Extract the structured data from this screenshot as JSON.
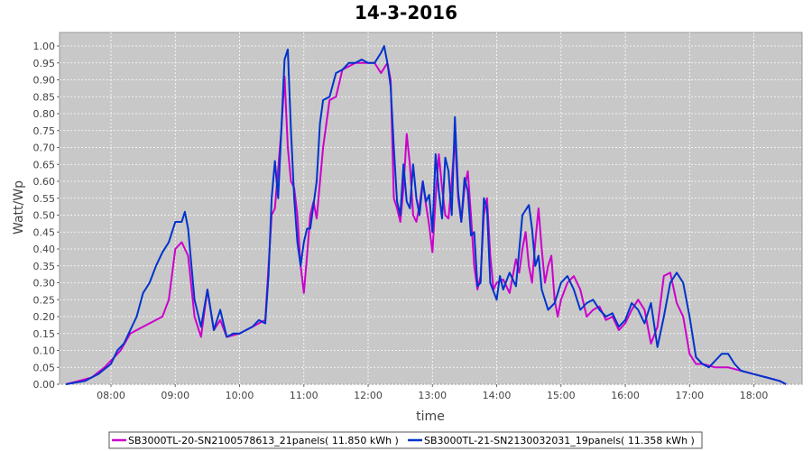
{
  "chart_data": {
    "type": "line",
    "title": "14-3-2016",
    "xlabel": "time",
    "ylabel": "Watt/Wp",
    "x_unit": "hours",
    "xlim": [
      7.2,
      18.75
    ],
    "ylim": [
      0.0,
      1.04
    ],
    "x_ticks": [
      {
        "value": 8,
        "label": "08:00"
      },
      {
        "value": 9,
        "label": "09:00"
      },
      {
        "value": 10,
        "label": "10:00"
      },
      {
        "value": 11,
        "label": "11:00"
      },
      {
        "value": 12,
        "label": "12:00"
      },
      {
        "value": 13,
        "label": "13:00"
      },
      {
        "value": 14,
        "label": "14:00"
      },
      {
        "value": 15,
        "label": "15:00"
      },
      {
        "value": 16,
        "label": "16:00"
      },
      {
        "value": 17,
        "label": "17:00"
      },
      {
        "value": 18,
        "label": "18:00"
      }
    ],
    "y_ticks": [
      "0.00",
      "0.05",
      "0.10",
      "0.15",
      "0.20",
      "0.25",
      "0.30",
      "0.35",
      "0.40",
      "0.45",
      "0.50",
      "0.55",
      "0.60",
      "0.65",
      "0.70",
      "0.75",
      "0.80",
      "0.85",
      "0.90",
      "0.95",
      "1.00"
    ],
    "grid": true,
    "legend_position": "bottom",
    "colors": {
      "plot_background": "#c8c8c8",
      "grid": "#ffffff",
      "series_1": "#cc00cc",
      "series_2": "#0033cc"
    },
    "series": [
      {
        "name": "SB3000TL-20-SN2100578613_21panels( 11.850 kWh )",
        "color": "#cc00cc",
        "x": [
          7.3,
          7.5,
          7.7,
          7.9,
          8.0,
          8.15,
          8.3,
          8.5,
          8.7,
          8.8,
          8.9,
          9.0,
          9.1,
          9.2,
          9.3,
          9.4,
          9.5,
          9.6,
          9.7,
          9.8,
          10.0,
          10.2,
          10.3,
          10.4,
          10.5,
          10.55,
          10.65,
          10.7,
          10.75,
          10.8,
          10.85,
          10.9,
          10.95,
          11.0,
          11.05,
          11.1,
          11.15,
          11.2,
          11.3,
          11.4,
          11.5,
          11.6,
          11.7,
          11.8,
          12.0,
          12.1,
          12.2,
          12.3,
          12.35,
          12.4,
          12.45,
          12.5,
          12.55,
          12.6,
          12.65,
          12.7,
          12.75,
          12.8,
          12.85,
          12.9,
          12.95,
          13.0,
          13.05,
          13.1,
          13.15,
          13.2,
          13.25,
          13.3,
          13.35,
          13.4,
          13.45,
          13.5,
          13.55,
          13.6,
          13.65,
          13.7,
          13.75,
          13.8,
          13.85,
          13.9,
          13.95,
          14.0,
          14.1,
          14.2,
          14.3,
          14.35,
          14.4,
          14.45,
          14.5,
          14.55,
          14.6,
          14.65,
          14.7,
          14.75,
          14.8,
          14.85,
          14.9,
          14.95,
          15.0,
          15.1,
          15.2,
          15.3,
          15.4,
          15.5,
          15.6,
          15.7,
          15.8,
          15.9,
          16.0,
          16.1,
          16.2,
          16.3,
          16.4,
          16.5,
          16.6,
          16.7,
          16.8,
          16.9,
          17.0,
          17.1,
          17.2,
          17.4,
          17.6,
          17.8,
          18.0,
          18.2,
          18.4,
          18.5
        ],
        "y": [
          0.0,
          0.01,
          0.02,
          0.05,
          0.07,
          0.1,
          0.15,
          0.17,
          0.19,
          0.2,
          0.25,
          0.4,
          0.42,
          0.38,
          0.2,
          0.14,
          0.28,
          0.16,
          0.19,
          0.14,
          0.15,
          0.17,
          0.18,
          0.19,
          0.5,
          0.52,
          0.75,
          0.91,
          0.7,
          0.6,
          0.58,
          0.5,
          0.35,
          0.27,
          0.38,
          0.5,
          0.54,
          0.49,
          0.7,
          0.84,
          0.85,
          0.93,
          0.94,
          0.95,
          0.95,
          0.95,
          0.92,
          0.95,
          0.9,
          0.55,
          0.52,
          0.48,
          0.58,
          0.74,
          0.65,
          0.5,
          0.48,
          0.53,
          0.6,
          0.53,
          0.47,
          0.39,
          0.55,
          0.68,
          0.58,
          0.5,
          0.49,
          0.6,
          0.73,
          0.55,
          0.48,
          0.58,
          0.63,
          0.5,
          0.35,
          0.28,
          0.32,
          0.5,
          0.55,
          0.38,
          0.28,
          0.3,
          0.31,
          0.27,
          0.37,
          0.33,
          0.4,
          0.45,
          0.35,
          0.3,
          0.42,
          0.52,
          0.4,
          0.3,
          0.35,
          0.38,
          0.25,
          0.2,
          0.25,
          0.3,
          0.32,
          0.28,
          0.2,
          0.22,
          0.23,
          0.19,
          0.2,
          0.16,
          0.18,
          0.22,
          0.25,
          0.22,
          0.12,
          0.17,
          0.32,
          0.33,
          0.24,
          0.2,
          0.09,
          0.06,
          0.06,
          0.05,
          0.05,
          0.04,
          0.03,
          0.02,
          0.01,
          0.0
        ]
      },
      {
        "name": "SB3000TL-21-SN2130032031_19panels( 11.358 kWh )",
        "color": "#0033cc",
        "x": [
          7.3,
          7.6,
          7.8,
          8.0,
          8.1,
          8.2,
          8.3,
          8.4,
          8.5,
          8.6,
          8.7,
          8.8,
          8.9,
          9.0,
          9.1,
          9.15,
          9.2,
          9.3,
          9.4,
          9.5,
          9.6,
          9.7,
          9.8,
          9.9,
          10.0,
          10.2,
          10.3,
          10.4,
          10.45,
          10.5,
          10.55,
          10.6,
          10.65,
          10.7,
          10.75,
          10.8,
          10.85,
          10.9,
          10.95,
          11.0,
          11.05,
          11.1,
          11.2,
          11.25,
          11.3,
          11.4,
          11.5,
          11.6,
          11.7,
          11.8,
          11.9,
          12.0,
          12.1,
          12.2,
          12.25,
          12.3,
          12.35,
          12.4,
          12.45,
          12.5,
          12.55,
          12.6,
          12.65,
          12.7,
          12.75,
          12.8,
          12.85,
          12.9,
          12.95,
          13.0,
          13.05,
          13.1,
          13.15,
          13.2,
          13.25,
          13.3,
          13.35,
          13.4,
          13.45,
          13.5,
          13.55,
          13.6,
          13.65,
          13.7,
          13.75,
          13.8,
          13.85,
          13.9,
          14.0,
          14.05,
          14.1,
          14.2,
          14.3,
          14.4,
          14.5,
          14.55,
          14.6,
          14.65,
          14.7,
          14.8,
          14.9,
          15.0,
          15.1,
          15.2,
          15.3,
          15.4,
          15.5,
          15.6,
          15.7,
          15.8,
          15.9,
          16.0,
          16.1,
          16.2,
          16.3,
          16.4,
          16.5,
          16.6,
          16.7,
          16.8,
          16.9,
          17.0,
          17.1,
          17.2,
          17.3,
          17.5,
          17.6,
          17.7,
          17.8,
          18.0,
          18.2,
          18.4,
          18.5
        ],
        "y": [
          0.0,
          0.01,
          0.03,
          0.06,
          0.1,
          0.12,
          0.16,
          0.2,
          0.27,
          0.3,
          0.35,
          0.39,
          0.42,
          0.48,
          0.48,
          0.51,
          0.46,
          0.25,
          0.17,
          0.28,
          0.16,
          0.22,
          0.14,
          0.15,
          0.15,
          0.17,
          0.19,
          0.18,
          0.32,
          0.55,
          0.66,
          0.55,
          0.75,
          0.96,
          0.99,
          0.75,
          0.55,
          0.42,
          0.35,
          0.42,
          0.46,
          0.46,
          0.6,
          0.77,
          0.84,
          0.85,
          0.92,
          0.93,
          0.95,
          0.95,
          0.96,
          0.95,
          0.95,
          0.98,
          1.0,
          0.95,
          0.88,
          0.7,
          0.54,
          0.5,
          0.65,
          0.54,
          0.52,
          0.65,
          0.55,
          0.5,
          0.6,
          0.54,
          0.56,
          0.45,
          0.68,
          0.57,
          0.49,
          0.67,
          0.63,
          0.5,
          0.79,
          0.57,
          0.48,
          0.61,
          0.57,
          0.44,
          0.45,
          0.29,
          0.3,
          0.55,
          0.52,
          0.3,
          0.25,
          0.32,
          0.28,
          0.33,
          0.29,
          0.5,
          0.53,
          0.46,
          0.35,
          0.38,
          0.28,
          0.22,
          0.24,
          0.3,
          0.32,
          0.28,
          0.22,
          0.24,
          0.25,
          0.22,
          0.2,
          0.21,
          0.17,
          0.19,
          0.24,
          0.22,
          0.18,
          0.24,
          0.11,
          0.2,
          0.3,
          0.33,
          0.3,
          0.2,
          0.08,
          0.06,
          0.05,
          0.09,
          0.09,
          0.06,
          0.04,
          0.03,
          0.02,
          0.01,
          0.0
        ]
      }
    ]
  }
}
